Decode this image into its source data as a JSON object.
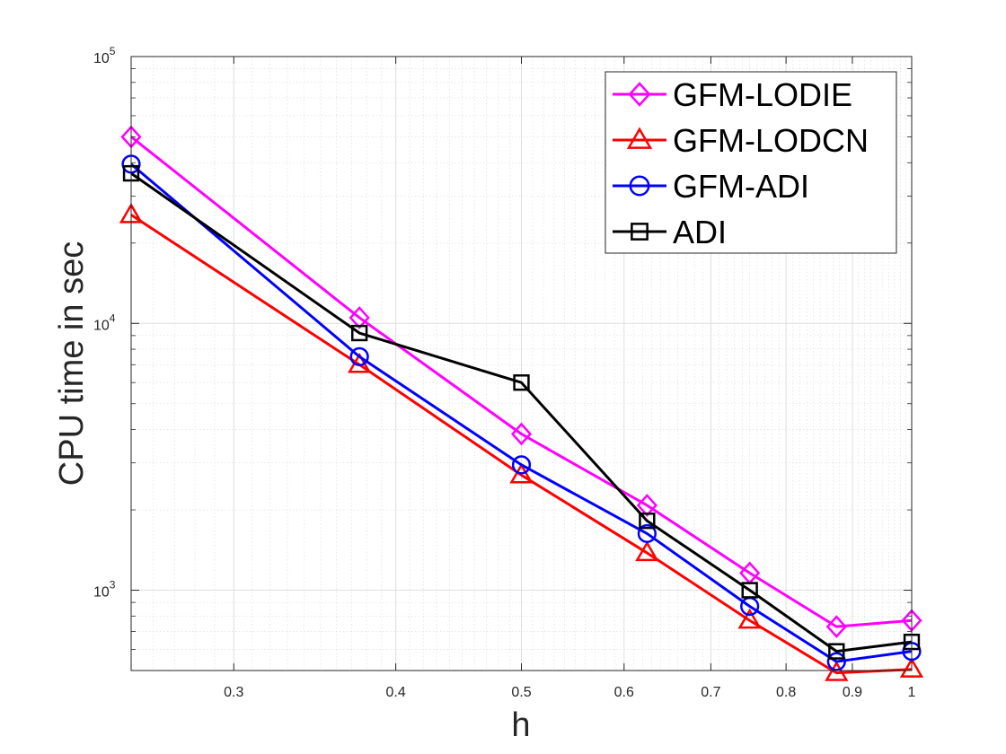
{
  "chart_data": {
    "type": "line",
    "xlabel": "h",
    "ylabel": "CPU time in sec",
    "x_scale": "log",
    "y_scale": "log",
    "xlim": [
      0.25,
      1
    ],
    "ylim": [
      500,
      100000
    ],
    "grid": true,
    "minor_grid": true,
    "legend_position": "top-right",
    "x_ticks": [
      {
        "value": 0.3,
        "label": "0.3"
      },
      {
        "value": 0.4,
        "label": "0.4"
      },
      {
        "value": 0.5,
        "label": "0.5"
      },
      {
        "value": 0.6,
        "label": "0.6"
      },
      {
        "value": 0.7,
        "label": "0.7"
      },
      {
        "value": 0.8,
        "label": "0.8"
      },
      {
        "value": 0.9,
        "label": "0.9"
      },
      {
        "value": 1,
        "label": "1"
      }
    ],
    "y_ticks": [
      {
        "value": 1000,
        "base": "10",
        "exp": "3"
      },
      {
        "value": 10000,
        "base": "10",
        "exp": "4"
      },
      {
        "value": 100000,
        "base": "10",
        "exp": "5"
      }
    ],
    "x": [
      0.25,
      0.375,
      0.5,
      0.625,
      0.75,
      0.875,
      1
    ],
    "series": [
      {
        "name": "GFM-LODIE",
        "color": "#ff00ff",
        "marker": "diamond",
        "values": [
          50000,
          10500,
          3850,
          2080,
          1160,
          730,
          770
        ]
      },
      {
        "name": "GFM-LODCN",
        "color": "#ff0000",
        "marker": "triangle",
        "values": [
          25500,
          7000,
          2700,
          1380,
          770,
          490,
          505
        ]
      },
      {
        "name": "GFM-ADI",
        "color": "#0000ff",
        "marker": "circle",
        "values": [
          39500,
          7500,
          2950,
          1630,
          870,
          540,
          590
        ]
      },
      {
        "name": "ADI",
        "color": "#000000",
        "marker": "square",
        "values": [
          36500,
          9200,
          6000,
          1820,
          1000,
          590,
          640
        ]
      }
    ]
  }
}
